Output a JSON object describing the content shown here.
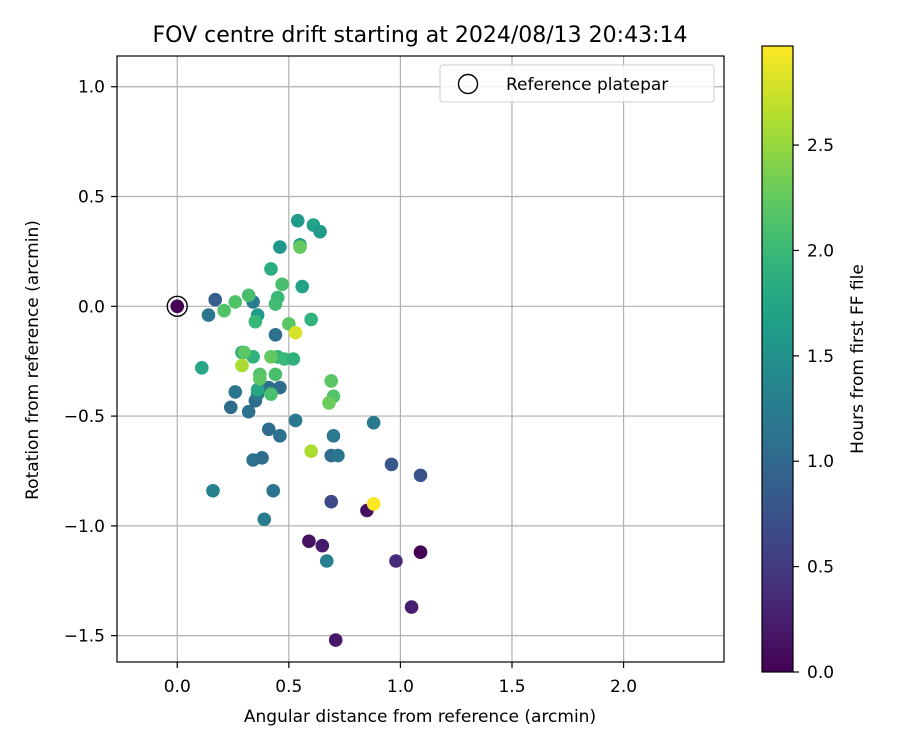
{
  "chart_data": {
    "type": "scatter",
    "title": "FOV centre drift starting at 2024/08/13 20:43:14",
    "xlabel": "Angular distance from reference (arcmin)",
    "ylabel": "Rotation from reference (arcmin)",
    "xlim": [
      -0.27,
      2.45
    ],
    "ylim": [
      -1.62,
      1.14
    ],
    "xticks": [
      0.0,
      0.5,
      1.0,
      1.5,
      2.0
    ],
    "xtick_labels": [
      "0.0",
      "0.5",
      "1.0",
      "1.5",
      "2.0"
    ],
    "yticks": [
      1.0,
      0.5,
      0.0,
      -0.5,
      -1.0,
      -1.5
    ],
    "ytick_labels": [
      "1.0",
      "0.5",
      "0.0",
      "−0.5",
      "−1.0",
      "−1.5"
    ],
    "grid": true,
    "legend": {
      "position": "top-right",
      "label": "Reference platepar"
    },
    "reference_point": {
      "x": 0.0,
      "y": 0.0
    },
    "colorbar": {
      "label": "Hours from first FF file",
      "colormap": "viridis",
      "range": [
        0.0,
        2.97
      ],
      "ticks": [
        0.0,
        0.5,
        1.0,
        1.5,
        2.0,
        2.5
      ],
      "tick_labels": [
        "0.0",
        "0.5",
        "1.0",
        "1.5",
        "2.0",
        "2.5"
      ]
    },
    "points": [
      {
        "x": 1.09,
        "y": -1.12,
        "c": 0.0
      },
      {
        "x": 0.85,
        "y": -0.93,
        "c": 0.12
      },
      {
        "x": 0.71,
        "y": -1.52,
        "c": 0.2
      },
      {
        "x": 0.59,
        "y": -1.07,
        "c": 0.15
      },
      {
        "x": 0.65,
        "y": -1.09,
        "c": 0.22
      },
      {
        "x": 1.05,
        "y": -1.37,
        "c": 0.25
      },
      {
        "x": 0.98,
        "y": -1.16,
        "c": 0.35
      },
      {
        "x": 0.69,
        "y": -0.89,
        "c": 0.65
      },
      {
        "x": 0.96,
        "y": -0.72,
        "c": 0.8
      },
      {
        "x": 1.09,
        "y": -0.77,
        "c": 0.75
      },
      {
        "x": 0.0,
        "y": 0.0,
        "c": 0.0
      },
      {
        "x": 0.17,
        "y": 0.03,
        "c": 0.9
      },
      {
        "x": 0.14,
        "y": -0.04,
        "c": 1.15
      },
      {
        "x": 0.24,
        "y": -0.46,
        "c": 1.05
      },
      {
        "x": 0.26,
        "y": -0.39,
        "c": 1.15
      },
      {
        "x": 0.32,
        "y": -0.48,
        "c": 1.1
      },
      {
        "x": 0.34,
        "y": -0.7,
        "c": 1.1
      },
      {
        "x": 0.38,
        "y": -0.69,
        "c": 1.05
      },
      {
        "x": 0.39,
        "y": -0.97,
        "c": 1.25
      },
      {
        "x": 0.41,
        "y": -0.56,
        "c": 1.05
      },
      {
        "x": 0.43,
        "y": -0.84,
        "c": 1.15
      },
      {
        "x": 0.46,
        "y": -0.59,
        "c": 1.1
      },
      {
        "x": 0.35,
        "y": -0.43,
        "c": 1.05
      },
      {
        "x": 0.36,
        "y": -0.4,
        "c": 1.2
      },
      {
        "x": 0.41,
        "y": -0.37,
        "c": 1.1
      },
      {
        "x": 0.46,
        "y": -0.37,
        "c": 1.05
      },
      {
        "x": 0.44,
        "y": -0.13,
        "c": 1.1
      },
      {
        "x": 0.34,
        "y": 0.02,
        "c": 1.25
      },
      {
        "x": 0.53,
        "y": -0.52,
        "c": 1.2
      },
      {
        "x": 0.69,
        "y": -0.68,
        "c": 1.05
      },
      {
        "x": 0.72,
        "y": -0.68,
        "c": 1.15
      },
      {
        "x": 0.7,
        "y": -0.59,
        "c": 1.2
      },
      {
        "x": 0.67,
        "y": -1.16,
        "c": 1.3
      },
      {
        "x": 0.88,
        "y": -0.53,
        "c": 1.2
      },
      {
        "x": 0.16,
        "y": -0.84,
        "c": 1.3
      },
      {
        "x": 0.36,
        "y": -0.04,
        "c": 1.6
      },
      {
        "x": 0.46,
        "y": 0.27,
        "c": 1.55
      },
      {
        "x": 0.54,
        "y": 0.39,
        "c": 1.6
      },
      {
        "x": 0.55,
        "y": 0.28,
        "c": 1.65
      },
      {
        "x": 0.61,
        "y": 0.37,
        "c": 1.7
      },
      {
        "x": 0.64,
        "y": 0.34,
        "c": 1.6
      },
      {
        "x": 0.56,
        "y": 0.09,
        "c": 1.7
      },
      {
        "x": 0.11,
        "y": -0.28,
        "c": 1.75
      },
      {
        "x": 0.36,
        "y": -0.38,
        "c": 1.75
      },
      {
        "x": 0.29,
        "y": -0.21,
        "c": 1.8
      },
      {
        "x": 0.34,
        "y": -0.23,
        "c": 1.9
      },
      {
        "x": 0.45,
        "y": -0.23,
        "c": 1.95
      },
      {
        "x": 0.48,
        "y": -0.24,
        "c": 2.0
      },
      {
        "x": 0.52,
        "y": -0.24,
        "c": 1.9
      },
      {
        "x": 0.42,
        "y": 0.17,
        "c": 1.85
      },
      {
        "x": 0.6,
        "y": -0.06,
        "c": 1.9
      },
      {
        "x": 0.47,
        "y": 0.1,
        "c": 2.1
      },
      {
        "x": 0.45,
        "y": 0.04,
        "c": 2.0
      },
      {
        "x": 0.44,
        "y": 0.01,
        "c": 2.05
      },
      {
        "x": 0.35,
        "y": -0.07,
        "c": 2.0
      },
      {
        "x": 0.21,
        "y": -0.02,
        "c": 2.15
      },
      {
        "x": 0.26,
        "y": 0.02,
        "c": 2.15
      },
      {
        "x": 0.32,
        "y": 0.05,
        "c": 2.1
      },
      {
        "x": 0.3,
        "y": -0.21,
        "c": 2.2
      },
      {
        "x": 0.37,
        "y": -0.31,
        "c": 2.15
      },
      {
        "x": 0.37,
        "y": -0.33,
        "c": 2.2
      },
      {
        "x": 0.44,
        "y": -0.31,
        "c": 2.1
      },
      {
        "x": 0.42,
        "y": -0.23,
        "c": 2.25
      },
      {
        "x": 0.42,
        "y": -0.4,
        "c": 2.1
      },
      {
        "x": 0.5,
        "y": -0.08,
        "c": 2.2
      },
      {
        "x": 0.55,
        "y": 0.27,
        "c": 2.25
      },
      {
        "x": 0.69,
        "y": -0.34,
        "c": 2.2
      },
      {
        "x": 0.7,
        "y": -0.41,
        "c": 2.15
      },
      {
        "x": 0.68,
        "y": -0.44,
        "c": 2.3
      },
      {
        "x": 0.29,
        "y": -0.27,
        "c": 2.6
      },
      {
        "x": 0.6,
        "y": -0.66,
        "c": 2.6
      },
      {
        "x": 0.53,
        "y": -0.12,
        "c": 2.8
      },
      {
        "x": 0.88,
        "y": -0.9,
        "c": 2.97
      }
    ]
  }
}
